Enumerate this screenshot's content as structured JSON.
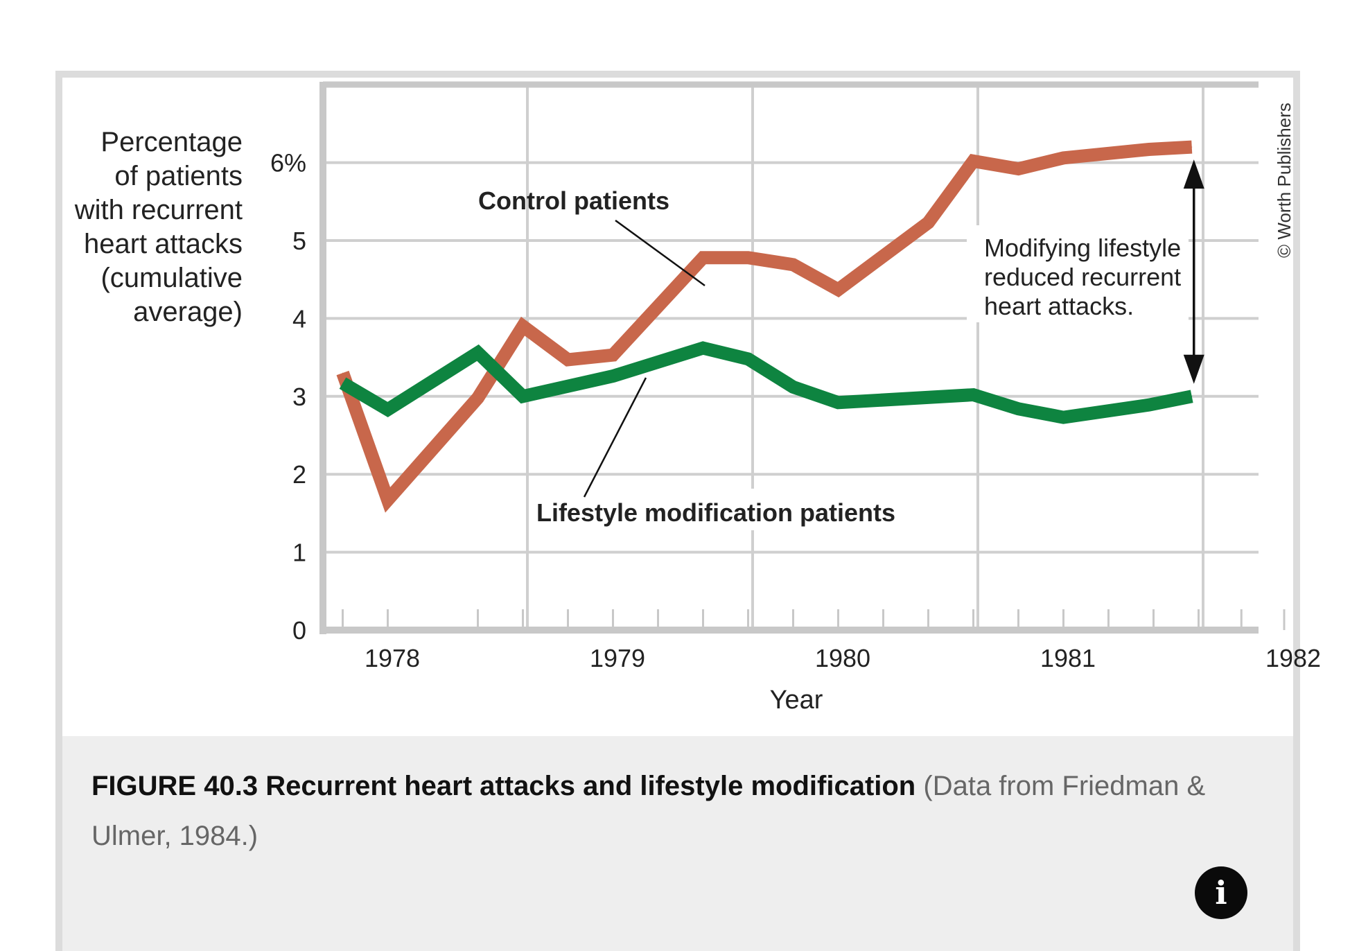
{
  "figure": {
    "caption_title": "FIGURE 40.3 Recurrent heart attacks and lifestyle modification",
    "caption_source": "(Data from Friedman & Ulmer, 1984.)",
    "copyright": "© Worth Publishers",
    "info_icon": "info-icon",
    "info_glyph": "i"
  },
  "chart_data": {
    "type": "line",
    "title": "",
    "xlabel": "Year",
    "ylabel": "Percentage of patients with recurrent heart attacks (cumulative average)",
    "ylabel_lines": [
      "Percentage",
      "of patients",
      "with recurrent",
      "heart attacks",
      "(cumulative",
      "average)"
    ],
    "ylim": [
      0,
      6.8
    ],
    "y_ticks": [
      0,
      1,
      2,
      3,
      4,
      5,
      6
    ],
    "y_tick_labels": [
      "0",
      "1",
      "2",
      "3",
      "4",
      "5",
      "6%"
    ],
    "x_range": [
      1977.55,
      1982.45
    ],
    "x_ticks": [
      1978,
      1979,
      1980,
      1981,
      1982
    ],
    "x_tick_labels": [
      "1978",
      "1979",
      "1980",
      "1981",
      "1982"
    ],
    "x_gridlines": [
      1978.6,
      1979.6,
      1980.6,
      1981.6
    ],
    "x_minor_ticks": [
      1977.78,
      1977.98,
      1978.38,
      1978.58,
      1978.78,
      1978.98,
      1979.18,
      1979.38,
      1979.58,
      1979.78,
      1979.98,
      1980.18,
      1980.38,
      1980.58,
      1980.78,
      1980.98,
      1981.18,
      1981.38,
      1981.58,
      1981.77,
      1981.96
    ],
    "grid": true,
    "series": [
      {
        "name": "Control patients",
        "color": "#C8674B",
        "x": [
          1977.78,
          1977.98,
          1978.38,
          1978.58,
          1978.78,
          1978.98,
          1979.38,
          1979.58,
          1979.78,
          1979.98,
          1980.38,
          1980.58,
          1980.78,
          1980.98,
          1981.36,
          1981.55
        ],
        "values": [
          3.3,
          1.67,
          2.98,
          3.9,
          3.47,
          3.53,
          4.78,
          4.78,
          4.69,
          4.37,
          5.23,
          6.02,
          5.92,
          6.06,
          6.17,
          6.2
        ]
      },
      {
        "name": "Lifestyle modification patients",
        "color": "#0E8440",
        "x": [
          1977.78,
          1977.98,
          1978.38,
          1978.58,
          1978.98,
          1979.38,
          1979.58,
          1979.78,
          1979.98,
          1980.58,
          1980.78,
          1980.98,
          1981.36,
          1981.55
        ],
        "values": [
          3.17,
          2.83,
          3.56,
          3.0,
          3.26,
          3.62,
          3.48,
          3.12,
          2.92,
          3.02,
          2.84,
          2.73,
          2.89,
          3.0
        ]
      }
    ],
    "annotations": [
      {
        "text": "Control patients",
        "series": "Control patients"
      },
      {
        "text": "Lifestyle modification patients",
        "series": "Lifestyle modification patients"
      },
      {
        "text_lines": [
          "Modifying lifestyle",
          "reduced recurrent",
          "heart attacks."
        ],
        "type": "double-arrow",
        "from": 6.2,
        "to": 3.0,
        "at_x": 1981.55
      }
    ],
    "legend": "none"
  }
}
